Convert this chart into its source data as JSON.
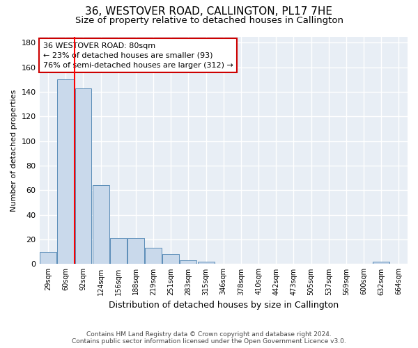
{
  "title": "36, WESTOVER ROAD, CALLINGTON, PL17 7HE",
  "subtitle": "Size of property relative to detached houses in Callington",
  "xlabel": "Distribution of detached houses by size in Callington",
  "ylabel": "Number of detached properties",
  "bar_labels": [
    "29sqm",
    "60sqm",
    "92sqm",
    "124sqm",
    "156sqm",
    "188sqm",
    "219sqm",
    "251sqm",
    "283sqm",
    "315sqm",
    "346sqm",
    "378sqm",
    "410sqm",
    "442sqm",
    "473sqm",
    "505sqm",
    "537sqm",
    "569sqm",
    "600sqm",
    "632sqm",
    "664sqm"
  ],
  "bar_values": [
    10,
    150,
    143,
    64,
    21,
    21,
    13,
    8,
    3,
    2,
    0,
    0,
    0,
    0,
    0,
    0,
    0,
    0,
    0,
    2,
    0
  ],
  "bar_color": "#c9d9eb",
  "bar_edge_color": "#5b8db8",
  "ylim": [
    0,
    185
  ],
  "yticks": [
    0,
    20,
    40,
    60,
    80,
    100,
    120,
    140,
    160,
    180
  ],
  "red_line_x": 1.5,
  "annotation_text": "36 WESTOVER ROAD: 80sqm\n← 23% of detached houses are smaller (93)\n76% of semi-detached houses are larger (312) →",
  "annotation_box_color": "#ffffff",
  "annotation_box_edge": "#cc0000",
  "footer_line1": "Contains HM Land Registry data © Crown copyright and database right 2024.",
  "footer_line2": "Contains public sector information licensed under the Open Government Licence v3.0.",
  "bg_color": "#f0f4fa",
  "plot_bg_color": "#e8eef5",
  "grid_color": "#ffffff",
  "title_fontsize": 11,
  "subtitle_fontsize": 9.5,
  "xlabel_fontsize": 9,
  "ylabel_fontsize": 8
}
